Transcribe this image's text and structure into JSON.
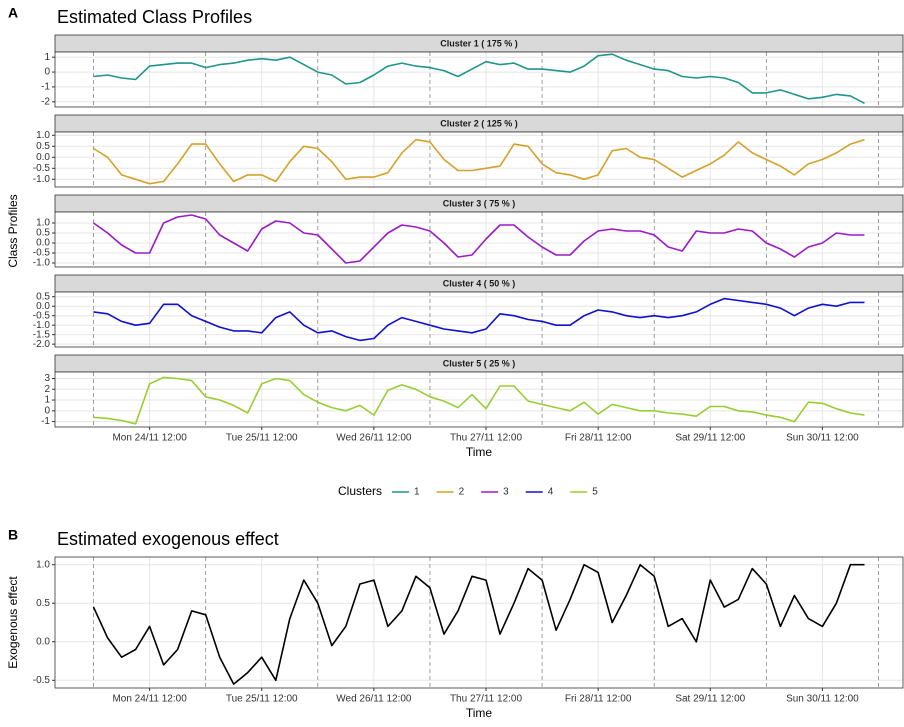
{
  "chart_data": [
    {
      "type": "line",
      "tag": "A",
      "title": "Estimated Class Profiles",
      "xlabel": "Time",
      "ylabel": "Class Profiles",
      "legend_title": "Clusters",
      "grid": true,
      "x": [
        "Mon 24/11 00:00",
        "Mon 24/11 03:00",
        "Mon 24/11 06:00",
        "Mon 24/11 09:00",
        "Mon 24/11 12:00",
        "Mon 24/11 15:00",
        "Mon 24/11 18:00",
        "Mon 24/11 21:00",
        "Tue 25/11 00:00",
        "Tue 25/11 03:00",
        "Tue 25/11 06:00",
        "Tue 25/11 09:00",
        "Tue 25/11 12:00",
        "Tue 25/11 15:00",
        "Tue 25/11 18:00",
        "Tue 25/11 21:00",
        "Wed 26/11 00:00",
        "Wed 26/11 03:00",
        "Wed 26/11 06:00",
        "Wed 26/11 09:00",
        "Wed 26/11 12:00",
        "Wed 26/11 15:00",
        "Wed 26/11 18:00",
        "Wed 26/11 21:00",
        "Thu 27/11 00:00",
        "Thu 27/11 03:00",
        "Thu 27/11 06:00",
        "Thu 27/11 09:00",
        "Thu 27/11 12:00",
        "Thu 27/11 15:00",
        "Thu 27/11 18:00",
        "Thu 27/11 21:00",
        "Fri 28/11 00:00",
        "Fri 28/11 03:00",
        "Fri 28/11 06:00",
        "Fri 28/11 09:00",
        "Fri 28/11 12:00",
        "Fri 28/11 15:00",
        "Fri 28/11 18:00",
        "Fri 28/11 21:00",
        "Sat 29/11 00:00",
        "Sat 29/11 03:00",
        "Sat 29/11 06:00",
        "Sat 29/11 09:00",
        "Sat 29/11 12:00",
        "Sat 29/11 15:00",
        "Sat 29/11 18:00",
        "Sat 29/11 21:00",
        "Sun 30/11 00:00",
        "Sun 30/11 03:00",
        "Sun 30/11 06:00",
        "Sun 30/11 09:00",
        "Sun 30/11 12:00",
        "Sun 30/11 15:00",
        "Sun 30/11 18:00",
        "Sun 30/11 21:00"
      ],
      "xticks": [
        "Mon 24/11 12:00",
        "Tue 25/11 12:00",
        "Wed 26/11 12:00",
        "Thu 27/11 12:00",
        "Fri 28/11 12:00",
        "Sat 29/11 12:00",
        "Sun 30/11 12:00"
      ],
      "facets": [
        {
          "strip": "Cluster 1 ( 175 % )",
          "name": "1",
          "color": "#1f968b",
          "ylim": [
            -2.35,
            1.35
          ],
          "yticks": [
            -2,
            -1,
            0,
            1
          ],
          "values": [
            -0.3,
            -0.2,
            -0.4,
            -0.5,
            0.4,
            0.5,
            0.6,
            0.6,
            0.3,
            0.5,
            0.6,
            0.8,
            0.9,
            0.8,
            1.0,
            0.5,
            0.0,
            -0.2,
            -0.8,
            -0.7,
            -0.2,
            0.4,
            0.6,
            0.4,
            0.3,
            0.1,
            -0.3,
            0.2,
            0.7,
            0.5,
            0.6,
            0.2,
            0.2,
            0.1,
            0.0,
            0.4,
            1.1,
            1.2,
            0.8,
            0.5,
            0.2,
            0.1,
            -0.3,
            -0.4,
            -0.3,
            -0.4,
            -0.7,
            -1.4,
            -1.4,
            -1.2,
            -1.5,
            -1.8,
            -1.7,
            -1.5,
            -1.6,
            -2.1
          ]
        },
        {
          "strip": "Cluster 2 ( 125 % )",
          "name": "2",
          "color": "#d4a22a",
          "ylim": [
            -1.35,
            1.15
          ],
          "yticks": [
            {
              "value": -1,
              "label": "-1.0"
            },
            -0.5,
            {
              "value": 0,
              "label": "0.0"
            },
            0.5,
            {
              "value": 1,
              "label": "1.0"
            }
          ],
          "values": [
            0.4,
            0.0,
            -0.8,
            -1.0,
            -1.2,
            -1.1,
            -0.3,
            0.6,
            0.6,
            -0.3,
            -1.1,
            -0.8,
            -0.8,
            -1.1,
            -0.2,
            0.5,
            0.4,
            -0.2,
            -1.0,
            -0.9,
            -0.9,
            -0.7,
            0.2,
            0.8,
            0.7,
            -0.1,
            -0.6,
            -0.6,
            -0.5,
            -0.4,
            0.6,
            0.5,
            -0.3,
            -0.7,
            -0.8,
            -1.0,
            -0.8,
            0.3,
            0.4,
            0.0,
            -0.1,
            -0.5,
            -0.9,
            -0.6,
            -0.3,
            0.1,
            0.7,
            0.2,
            -0.1,
            -0.4,
            -0.8,
            -0.3,
            -0.1,
            0.2,
            0.6,
            0.8
          ]
        },
        {
          "strip": "Cluster 3 ( 75 % )",
          "name": "3",
          "color": "#9b1bc7",
          "ylim": [
            -1.2,
            1.55
          ],
          "yticks": [
            {
              "value": -1,
              "label": "-1.0"
            },
            -0.5,
            {
              "value": 0,
              "label": "0.0"
            },
            0.5,
            {
              "value": 1,
              "label": "1.0"
            }
          ],
          "values": [
            1.0,
            0.5,
            -0.1,
            -0.5,
            -0.5,
            1.0,
            1.3,
            1.4,
            1.2,
            0.4,
            0.0,
            -0.4,
            0.7,
            1.1,
            1.0,
            0.5,
            0.4,
            -0.3,
            -1.0,
            -0.9,
            -0.2,
            0.5,
            0.9,
            0.8,
            0.6,
            0.0,
            -0.7,
            -0.6,
            0.2,
            0.9,
            0.9,
            0.3,
            -0.2,
            -0.6,
            -0.6,
            0.1,
            0.6,
            0.7,
            0.6,
            0.6,
            0.4,
            -0.2,
            -0.4,
            0.6,
            0.5,
            0.5,
            0.7,
            0.6,
            0.0,
            -0.3,
            -0.7,
            -0.2,
            0.0,
            0.5,
            0.4,
            0.4
          ]
        },
        {
          "strip": "Cluster 4 ( 50 % )",
          "name": "4",
          "color": "#1010cf",
          "ylim": [
            -2.15,
            0.75
          ],
          "yticks": [
            {
              "value": -2,
              "label": "-2.0"
            },
            -1.5,
            {
              "value": -1,
              "label": "-1.0"
            },
            -0.5,
            {
              "value": 0,
              "label": "0.0"
            },
            0.5
          ],
          "values": [
            -0.3,
            -0.4,
            -0.8,
            -1.0,
            -0.9,
            0.1,
            0.1,
            -0.5,
            -0.8,
            -1.1,
            -1.3,
            -1.3,
            -1.4,
            -0.6,
            -0.3,
            -1.0,
            -1.4,
            -1.3,
            -1.6,
            -1.8,
            -1.7,
            -1.0,
            -0.6,
            -0.8,
            -1.0,
            -1.2,
            -1.3,
            -1.4,
            -1.2,
            -0.4,
            -0.5,
            -0.7,
            -0.8,
            -1.0,
            -1.0,
            -0.5,
            -0.2,
            -0.3,
            -0.5,
            -0.6,
            -0.5,
            -0.6,
            -0.5,
            -0.3,
            0.1,
            0.4,
            0.3,
            0.2,
            0.1,
            -0.1,
            -0.5,
            -0.1,
            0.1,
            0.0,
            0.2,
            0.2
          ]
        },
        {
          "strip": "Cluster 5 ( 25 % )",
          "name": "5",
          "color": "#9acd32",
          "ylim": [
            -1.5,
            3.6
          ],
          "yticks": [
            -1,
            0,
            1,
            2,
            3
          ],
          "values": [
            -0.6,
            -0.7,
            -0.9,
            -1.2,
            2.5,
            3.1,
            3.0,
            2.8,
            1.3,
            1.0,
            0.5,
            -0.2,
            2.5,
            3.0,
            2.8,
            1.5,
            0.8,
            0.3,
            0.0,
            0.5,
            -0.4,
            1.9,
            2.4,
            2.0,
            1.3,
            0.9,
            0.3,
            1.5,
            0.2,
            2.3,
            2.3,
            0.9,
            0.6,
            0.3,
            0.0,
            0.8,
            -0.3,
            0.6,
            0.3,
            0.0,
            0.0,
            -0.2,
            -0.3,
            -0.5,
            0.4,
            0.4,
            0.0,
            -0.1,
            -0.4,
            -0.6,
            -1.0,
            0.8,
            0.7,
            0.2,
            -0.2,
            -0.4
          ]
        }
      ]
    },
    {
      "type": "line",
      "tag": "B",
      "title": "Estimated exogenous effect",
      "xlabel": "Time",
      "ylabel": "Exogenous effect",
      "grid": true,
      "x": [
        "Mon 24/11 00:00",
        "Mon 24/11 03:00",
        "Mon 24/11 06:00",
        "Mon 24/11 09:00",
        "Mon 24/11 12:00",
        "Mon 24/11 15:00",
        "Mon 24/11 18:00",
        "Mon 24/11 21:00",
        "Tue 25/11 00:00",
        "Tue 25/11 03:00",
        "Tue 25/11 06:00",
        "Tue 25/11 09:00",
        "Tue 25/11 12:00",
        "Tue 25/11 15:00",
        "Tue 25/11 18:00",
        "Tue 25/11 21:00",
        "Wed 26/11 00:00",
        "Wed 26/11 03:00",
        "Wed 26/11 06:00",
        "Wed 26/11 09:00",
        "Wed 26/11 12:00",
        "Wed 26/11 15:00",
        "Wed 26/11 18:00",
        "Wed 26/11 21:00",
        "Thu 27/11 00:00",
        "Thu 27/11 03:00",
        "Thu 27/11 06:00",
        "Thu 27/11 09:00",
        "Thu 27/11 12:00",
        "Thu 27/11 15:00",
        "Thu 27/11 18:00",
        "Thu 27/11 21:00",
        "Fri 28/11 00:00",
        "Fri 28/11 03:00",
        "Fri 28/11 06:00",
        "Fri 28/11 09:00",
        "Fri 28/11 12:00",
        "Fri 28/11 15:00",
        "Fri 28/11 18:00",
        "Fri 28/11 21:00",
        "Sat 29/11 00:00",
        "Sat 29/11 03:00",
        "Sat 29/11 06:00",
        "Sat 29/11 09:00",
        "Sat 29/11 12:00",
        "Sat 29/11 15:00",
        "Sat 29/11 18:00",
        "Sat 29/11 21:00",
        "Sun 30/11 00:00",
        "Sun 30/11 03:00",
        "Sun 30/11 06:00",
        "Sun 30/11 09:00",
        "Sun 30/11 12:00",
        "Sun 30/11 15:00",
        "Sun 30/11 18:00",
        "Sun 30/11 21:00"
      ],
      "xticks": [
        "Mon 24/11 12:00",
        "Tue 25/11 12:00",
        "Wed 26/11 12:00",
        "Thu 27/11 12:00",
        "Fri 28/11 12:00",
        "Sat 29/11 12:00",
        "Sun 30/11 12:00"
      ],
      "ylim": [
        -0.6,
        1.1
      ],
      "yticks": [
        -0.5,
        {
          "value": 0,
          "label": "0.0"
        },
        0.5,
        {
          "value": 1,
          "label": "1.0"
        }
      ],
      "color": "#000000",
      "values": [
        0.45,
        0.05,
        -0.2,
        -0.1,
        0.2,
        -0.3,
        -0.1,
        0.4,
        0.35,
        -0.2,
        -0.55,
        -0.4,
        -0.2,
        -0.5,
        0.3,
        0.8,
        0.5,
        -0.05,
        0.2,
        0.75,
        0.8,
        0.2,
        0.4,
        0.85,
        0.7,
        0.1,
        0.4,
        0.85,
        0.8,
        0.1,
        0.5,
        0.95,
        0.8,
        0.15,
        0.55,
        1.0,
        0.9,
        0.25,
        0.6,
        1.0,
        0.85,
        0.2,
        0.3,
        0.0,
        0.8,
        0.45,
        0.55,
        0.95,
        0.75,
        0.2,
        0.6,
        0.3,
        0.2,
        0.5,
        1.0,
        1.0
      ]
    }
  ]
}
